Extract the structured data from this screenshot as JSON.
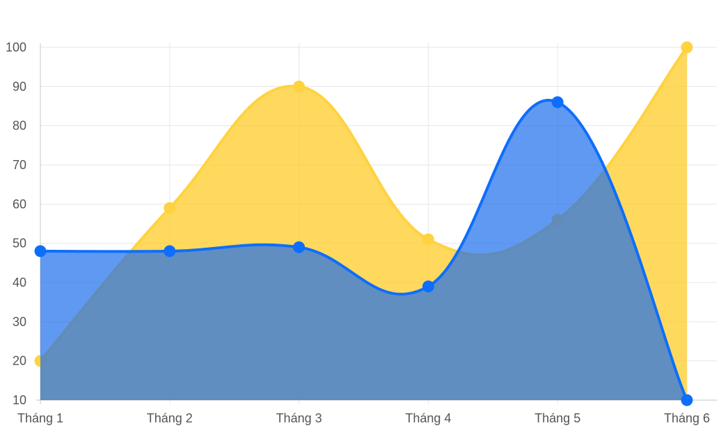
{
  "chart_data": {
    "type": "area",
    "categories": [
      "Tháng 1",
      "Tháng 2",
      "Tháng 3",
      "Tháng 4",
      "Tháng 5",
      "Tháng 6"
    ],
    "series": [
      {
        "values": [
          20,
          59,
          90,
          51,
          56,
          100
        ],
        "color": "#ffd23f",
        "fill": "rgba(255,204,40,0.75)"
      },
      {
        "values": [
          48,
          48,
          49,
          39,
          86,
          10
        ],
        "color": "#0d6efd",
        "fill": "rgba(28,110,235,0.70)"
      }
    ],
    "ylim": [
      10,
      100
    ],
    "yticks": [
      10,
      20,
      30,
      40,
      50,
      60,
      70,
      80,
      90,
      100
    ],
    "grid": true,
    "legend": "none",
    "title": "",
    "xlabel": "",
    "ylabel": ""
  }
}
